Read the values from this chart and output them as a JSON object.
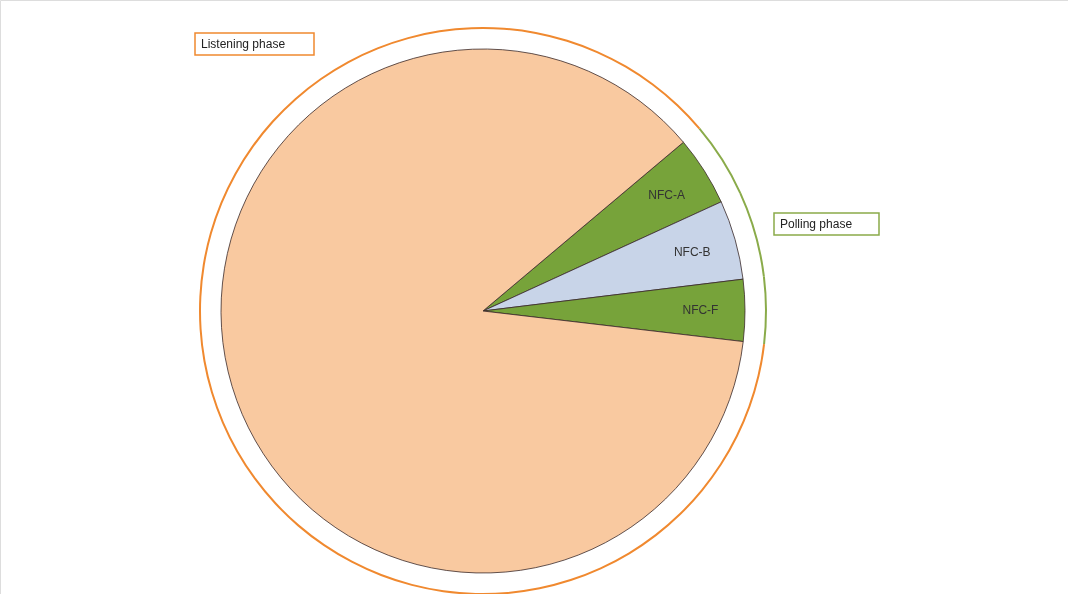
{
  "chart_data": {
    "type": "pie",
    "categories": [
      "NFC-A",
      "NFC-B",
      "NFC-F",
      "Listening phase"
    ],
    "series": [
      {
        "values": [
          4.3,
          4.9,
          3.8,
          87.0
        ],
        "colors": [
          "#77a33a",
          "#c8d4e8",
          "#77a33a",
          "#f9c9a0"
        ]
      },
      {
        "type": "donut",
        "values": [
          4.3,
          4.9,
          3.8,
          87.0
        ],
        "colors": [
          "#8aab4a",
          "#8aab4a",
          "#8aab4a",
          "#f0892f"
        ]
      }
    ],
    "annotations": [
      "Polling phase"
    ]
  }
}
